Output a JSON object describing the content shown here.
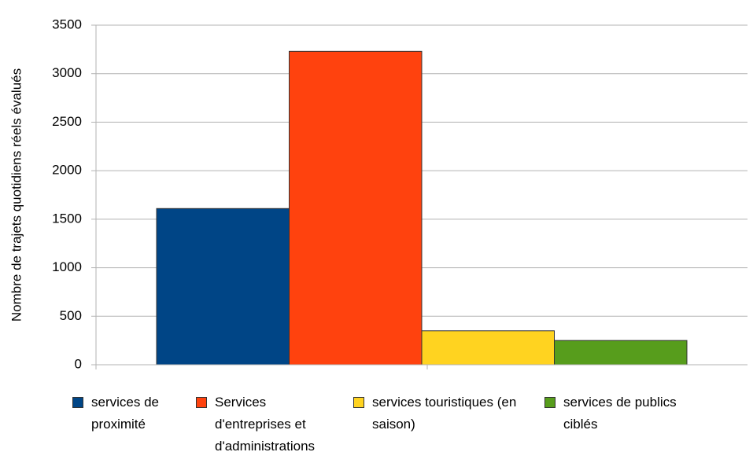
{
  "chart_data": {
    "type": "bar",
    "y_label": "Nombre de trajets quotidiens réels évalués",
    "categories": [
      null
    ],
    "series": [
      {
        "name": "services de proximité",
        "color": "#004586",
        "values": [
          1610
        ]
      },
      {
        "name": "Services d'entreprises et d'administrations",
        "color": "#ff420e",
        "values": [
          3230
        ]
      },
      {
        "name": "services touristiques (en saison)",
        "color": "#ffd320",
        "values": [
          350
        ]
      },
      {
        "name": "services de publics ciblés",
        "color": "#579d1c",
        "values": [
          250
        ]
      }
    ],
    "ylim": [
      0,
      3500
    ],
    "yticks": [
      0,
      500,
      1000,
      1500,
      2000,
      2500,
      3000,
      3500
    ],
    "grid": true,
    "legend": "bottom"
  }
}
